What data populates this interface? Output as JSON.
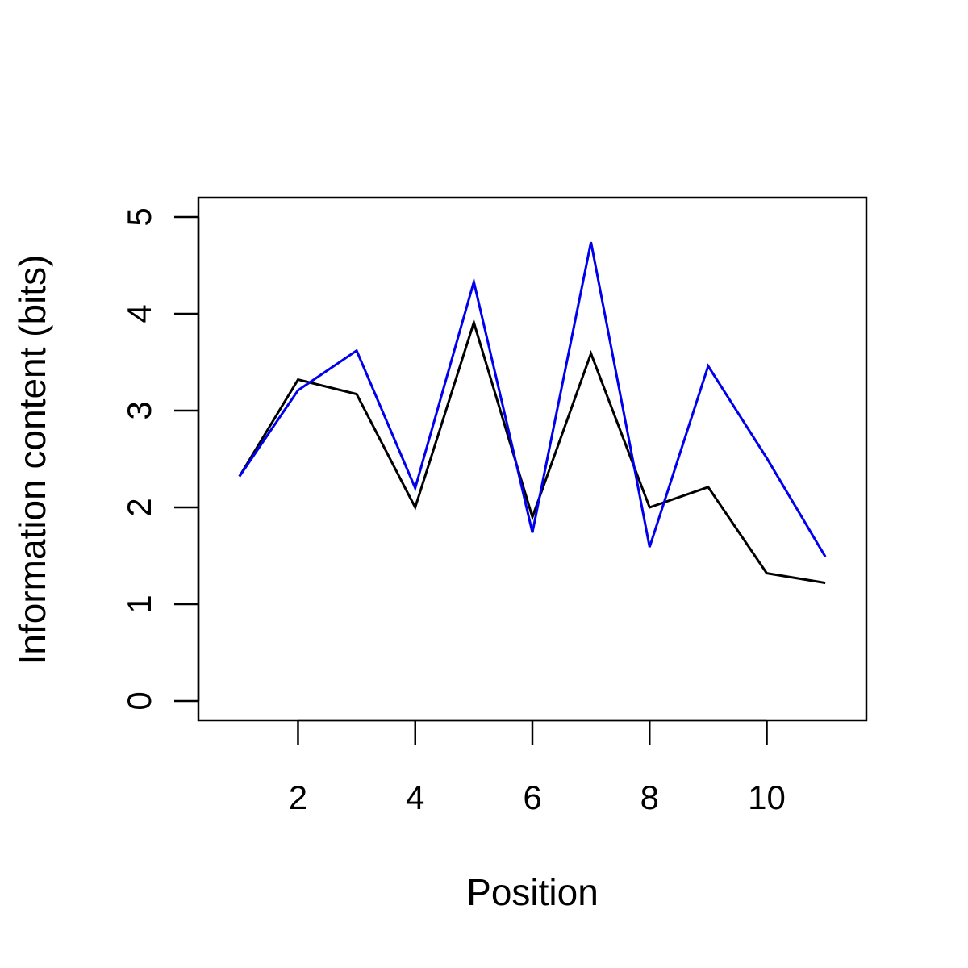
{
  "chart_data": {
    "type": "line",
    "title": "",
    "xlabel": "Position",
    "ylabel": "Information content (bits)",
    "x": [
      1,
      2,
      3,
      4,
      5,
      6,
      7,
      8,
      9,
      10,
      11
    ],
    "xlim": [
      0.3,
      11.7
    ],
    "ylim": [
      -0.2,
      5.2
    ],
    "xticks": [
      2,
      4,
      6,
      8,
      10
    ],
    "yticks": [
      0,
      1,
      2,
      3,
      4,
      5
    ],
    "xtick_labels": [
      "2",
      "4",
      "6",
      "8",
      "10"
    ],
    "ytick_labels": [
      "0",
      "1",
      "2",
      "3",
      "4",
      "5"
    ],
    "grid": false,
    "legend": "none",
    "series": [
      {
        "color": "#000000",
        "values": [
          2.32,
          3.32,
          3.17,
          2.0,
          3.91,
          1.9,
          3.59,
          2.0,
          2.21,
          1.32,
          1.22
        ]
      },
      {
        "color": "#0000ee",
        "values": [
          2.32,
          3.21,
          3.62,
          2.2,
          4.33,
          1.74,
          4.74,
          1.59,
          3.46,
          2.51,
          1.49
        ]
      }
    ]
  }
}
